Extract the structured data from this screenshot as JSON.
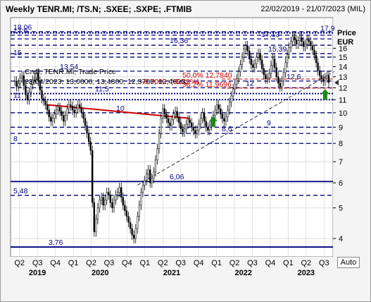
{
  "header": {
    "title": "Weekly TENR.MI; /TS.N; .SXEE; .SXPE; .FTMIB",
    "date_range": "22/02/2019 - 21/07/2023 (MIL)"
  },
  "axis": {
    "y_title": "Price",
    "y_unit": "EUR",
    "auto_button": "Auto"
  },
  "colors": {
    "candle_up": "#ffffff",
    "candle_down": "#000000",
    "support": "#000080",
    "trend_red": "#cc0000",
    "fib_text": "#cc0000",
    "arrow": "#1a8a1a",
    "grid": "#c8c8c8"
  },
  "chart_data": {
    "type": "candlestick",
    "period": "weekly",
    "instrument": "TENR.MI",
    "x_range": [
      "22/02/2019",
      "21/07/2023"
    ],
    "y_scale": "log",
    "ylim": [
      3.5,
      20
    ],
    "y_ticks": [
      4,
      5,
      6,
      7,
      8,
      9,
      10,
      11,
      12,
      13,
      14,
      15,
      16
    ],
    "quarter_labels": [
      "Q2",
      "Q3",
      "Q4",
      "Q1",
      "Q2",
      "Q3",
      "Q4",
      "Q1",
      "Q2",
      "Q3",
      "Q4",
      "Q1",
      "Q2",
      "Q3",
      "Q4",
      "Q1",
      "Q2",
      "Q3"
    ],
    "year_labels": [
      "2019",
      "2020",
      "2021",
      "2022",
      "2023"
    ],
    "last_price": 12.46,
    "info": "Cndl; TENR.MI; Trade Price",
    "ohlc_line": "28/04/2023; 13,0000; 13,4800; 12,3700; 12,4600; -0,7000; (-5,32%)",
    "levels": [
      {
        "label": "18,06",
        "value": 18.06
      },
      {
        "label": "17,6",
        "value": 17.6
      },
      {
        "label": "17,9",
        "value": 17.9
      },
      {
        "label": "17,13",
        "value": 17.13
      },
      {
        "label": "16,36",
        "value": 16.36
      },
      {
        "label": "15,39",
        "value": 15.39
      },
      {
        "label": "15",
        "value": 15
      },
      {
        "label": "13,54",
        "value": 13.54
      },
      {
        "label": "12,6",
        "value": 12.6
      },
      {
        "label": "12",
        "value": 12
      },
      {
        "label": "11,5",
        "value": 11.5
      },
      {
        "label": "11",
        "value": 11
      },
      {
        "label": "10",
        "value": 10
      },
      {
        "label": "9",
        "value": 9
      },
      {
        "label": "8,6",
        "value": 8.6
      },
      {
        "label": "8",
        "value": 8
      },
      {
        "label": "6,06",
        "value": 6.06
      },
      {
        "label": "5,48",
        "value": 5.48
      },
      {
        "label": "3,76",
        "value": 3.76
      }
    ],
    "fibonacci": [
      {
        "label": "50,0% 12,7840",
        "value": 12.784
      },
      {
        "label": "38,2% 11,9696",
        "value": 11.9696
      }
    ],
    "closes": [
      12.6,
      12.1,
      12.4,
      12.9,
      13.1,
      12.2,
      11.4,
      11.0,
      11.6,
      12.3,
      12.7,
      12.9,
      13.3,
      12.6,
      11.8,
      11.1,
      10.9,
      10.6,
      10.2,
      9.7,
      9.4,
      9.6,
      9.9,
      10.2,
      10.4,
      10.1,
      9.8,
      9.4,
      9.8,
      10.3,
      10.6,
      10.5,
      10.2,
      10.0,
      10.3,
      10.6,
      10.4,
      10.0,
      9.6,
      9.1,
      8.6,
      8.1,
      7.6,
      5.2,
      4.2,
      4.6,
      5.0,
      5.3,
      5.4,
      5.1,
      5.3,
      5.6,
      5.5,
      5.2,
      5.0,
      5.3,
      5.5,
      5.6,
      5.8,
      5.4,
      5.1,
      4.9,
      4.7,
      4.5,
      4.3,
      4.1,
      4.0,
      4.3,
      4.7,
      5.1,
      5.6,
      5.9,
      6.1,
      6.4,
      6.6,
      6.0,
      6.2,
      6.5,
      7.1,
      7.7,
      8.6,
      9.6,
      10.3,
      9.9,
      9.6,
      9.3,
      9.1,
      9.5,
      9.9,
      10.1,
      9.7,
      9.3,
      8.9,
      8.7,
      8.9,
      9.2,
      9.5,
      9.3,
      9.0,
      8.8,
      8.6,
      8.8,
      9.2,
      9.6,
      10.0,
      9.4,
      9.0,
      8.8,
      9.1,
      9.4,
      9.8,
      10.2,
      10.6,
      10.3,
      9.9,
      9.6,
      9.4,
      9.7,
      10.2,
      10.8,
      11.3,
      11.9,
      12.3,
      12.8,
      13.5,
      14.2,
      15.0,
      15.9,
      16.3,
      15.7,
      14.8,
      14.2,
      13.9,
      14.3,
      15.0,
      15.4,
      14.7,
      13.8,
      13.2,
      12.8,
      12.9,
      13.3,
      14.1,
      14.8,
      13.9,
      13.0,
      12.4,
      12.1,
      12.6,
      13.4,
      14.4,
      15.3,
      16.1,
      16.8,
      17.4,
      17.0,
      16.5,
      16.9,
      17.3,
      16.8,
      16.2,
      16.5,
      17.0,
      16.8,
      16.3,
      15.8,
      15.2,
      14.4,
      13.6,
      13.1,
      12.8,
      12.6,
      12.9,
      13.1,
      12.46
    ]
  }
}
